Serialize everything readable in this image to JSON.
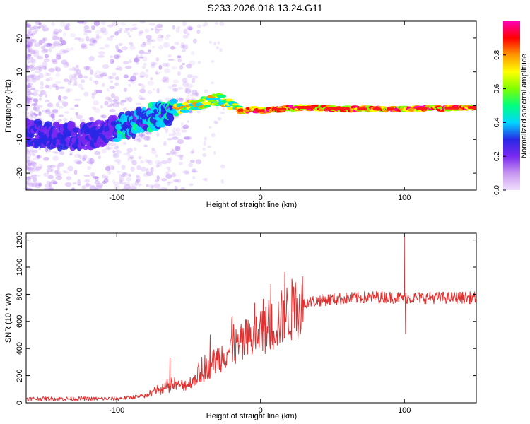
{
  "title": "S233.2026.018.13.24.G11",
  "chart_data": [
    {
      "type": "heatmap",
      "xlabel": "Height of straight line (km)",
      "ylabel": "Frequency (Hz)",
      "xlim": [
        -163,
        150
      ],
      "ylim": [
        -25,
        25
      ],
      "xticks": [
        -100,
        0,
        100
      ],
      "yticks": [
        -20,
        -10,
        0,
        10,
        20
      ],
      "colorbar": {
        "label": "Normalized spectral amplitude",
        "range": [
          0,
          1
        ],
        "ticks": [
          "0.0",
          "0.2",
          "0.4",
          "0.6",
          "0.8"
        ],
        "colors": [
          "#f0e0ff",
          "#c896f0",
          "#7a28f0",
          "#2828e6",
          "#00d7ff",
          "#00ff7f",
          "#7fff00",
          "#ffff00",
          "#ff9600",
          "#ff0000",
          "#ff00b4"
        ]
      },
      "ridge_frequency_hz": [
        {
          "x": -160,
          "f": -8
        },
        {
          "x": -140,
          "f": -9
        },
        {
          "x": -120,
          "f": -9
        },
        {
          "x": -100,
          "f": -7
        },
        {
          "x": -80,
          "f": -4
        },
        {
          "x": -60,
          "f": -1.5
        },
        {
          "x": -45,
          "f": 0.5
        },
        {
          "x": -28,
          "f": 2
        },
        {
          "x": -18,
          "f": 0
        },
        {
          "x": -12,
          "f": -2
        },
        {
          "x": -5,
          "f": -1
        },
        {
          "x": 0,
          "f": -1.5
        },
        {
          "x": 30,
          "f": -0.5
        },
        {
          "x": 60,
          "f": -1
        },
        {
          "x": 100,
          "f": -1
        },
        {
          "x": 150,
          "f": -0.5
        }
      ]
    },
    {
      "type": "line",
      "xlabel": "Height of straight line (km)",
      "ylabel": "SNR (10 * v/v)",
      "xlim": [
        -163,
        150
      ],
      "ylim": [
        0,
        1250
      ],
      "xticks": [
        -100,
        0,
        100
      ],
      "yticks": [
        0,
        200,
        400,
        600,
        800,
        1000,
        1200
      ],
      "series": [
        {
          "name": "SNR",
          "color": "#e03030",
          "trend": [
            {
              "x": -163,
              "y": 30
            },
            {
              "x": -100,
              "y": 30
            },
            {
              "x": -80,
              "y": 50
            },
            {
              "x": -65,
              "y": 110
            },
            {
              "x": -50,
              "y": 140
            },
            {
              "x": -40,
              "y": 230
            },
            {
              "x": -25,
              "y": 370
            },
            {
              "x": -10,
              "y": 450
            },
            {
              "x": 0,
              "y": 510
            },
            {
              "x": 10,
              "y": 580
            },
            {
              "x": 20,
              "y": 670
            },
            {
              "x": 30,
              "y": 740
            },
            {
              "x": 45,
              "y": 760
            },
            {
              "x": 60,
              "y": 770
            },
            {
              "x": 80,
              "y": 780
            },
            {
              "x": 100,
              "y": 775
            },
            {
              "x": 150,
              "y": 775
            }
          ],
          "spikes": [
            {
              "x": -63,
              "y": 330
            },
            {
              "x": -35,
              "y": 500
            },
            {
              "x": -20,
              "y": 610
            },
            {
              "x": -10,
              "y": 610
            },
            {
              "x": 100,
              "y": 1230
            },
            {
              "x": 100.8,
              "y": 510
            }
          ]
        }
      ]
    }
  ]
}
